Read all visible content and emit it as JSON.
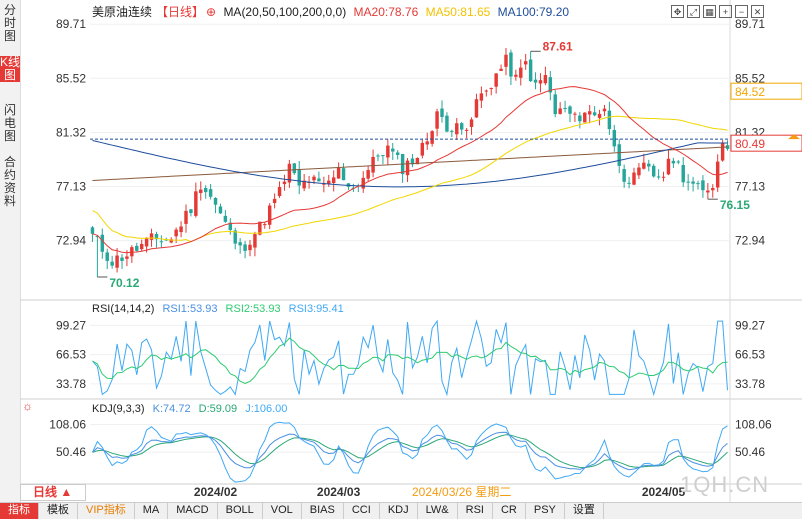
{
  "side_tabs": [
    {
      "label": "分时图",
      "active": false
    },
    {
      "label": "K线图",
      "active": true
    },
    {
      "label": "闪电图",
      "active": false
    },
    {
      "label": "合约资料",
      "active": false
    }
  ],
  "legend": {
    "instrument": "美原油连续",
    "period": "【日线】",
    "ma_params": "MA(20,50,100,200,0,0)",
    "ma20": "MA20:78.76",
    "ma50": "MA50:81.65",
    "ma100": "MA100:79.20"
  },
  "rsi_legend": {
    "name": "RSI(14,14,2)",
    "rsi1": "RSI1:53.93",
    "rsi2": "RSI2:53.93",
    "rsi3": "RSI3:95.41"
  },
  "kdj_legend": {
    "name": "KDJ(9,3,3)",
    "k": "K:74.72",
    "d": "D:59.09",
    "j": "J:106.00"
  },
  "colors": {
    "up": "#e53935",
    "down": "#26a69a",
    "ma20": "#e53935",
    "ma50": "#f2d600",
    "ma100": "#1f4e9c",
    "ma200": "#8b5a3c",
    "rsi1": "#4a90e2",
    "rsi2": "#2ecc71",
    "rsi3": "#3fa9f5",
    "kdj_k": "#4a90e2",
    "kdj_d": "#2aa876",
    "kdj_j": "#3fa9f5"
  },
  "period_button": "日线",
  "bottom_tabs": [
    "指标",
    "模板",
    "VIP指标",
    "MA",
    "MACD",
    "BOLL",
    "VOL",
    "BIAS",
    "CCI",
    "KDJ",
    "LW&",
    "RSI",
    "CR",
    "PSY",
    "设置"
  ],
  "watermark": "1QH.CN",
  "chart_data": {
    "type": "candlestick",
    "main": {
      "y_ticks": [
        "89.71",
        "85.52",
        "81.32",
        "77.13",
        "72.94"
      ],
      "ylim": [
        69.5,
        90.5
      ],
      "price_labels": [
        {
          "value": 84.52,
          "text": "84.52",
          "color": "#f2a600"
        },
        {
          "value": 80.49,
          "text": "80.49",
          "color": "#e53935"
        }
      ],
      "last_price_line": 80.8,
      "annotations": [
        {
          "text": "87.61",
          "value": 87.61,
          "index": 89,
          "color": "#e53935"
        },
        {
          "text": "70.12",
          "value": 70.12,
          "index": 1,
          "color": "#2aa876"
        },
        {
          "text": "76.15",
          "value": 76.15,
          "index": 125,
          "color": "#2aa876"
        }
      ],
      "anchors": [
        [
          0,
          73.3
        ],
        [
          4,
          71.3
        ],
        [
          8,
          72.1
        ],
        [
          12,
          73.0
        ],
        [
          16,
          73.1
        ],
        [
          20,
          75.5
        ],
        [
          22,
          77.4
        ],
        [
          24,
          76.4
        ],
        [
          28,
          73.5
        ],
        [
          30,
          72.2
        ],
        [
          34,
          74.0
        ],
        [
          38,
          76.7
        ],
        [
          40,
          78.6
        ],
        [
          42,
          77.1
        ],
        [
          44,
          77.7
        ],
        [
          47,
          77.0
        ],
        [
          50,
          78.3
        ],
        [
          53,
          77.0
        ],
        [
          56,
          78.4
        ],
        [
          58,
          79.6
        ],
        [
          60,
          80.1
        ],
        [
          63,
          78.6
        ],
        [
          66,
          79.5
        ],
        [
          68,
          80.8
        ],
        [
          70,
          83.0
        ],
        [
          72,
          81.3
        ],
        [
          74,
          82.5
        ],
        [
          76,
          81.0
        ],
        [
          78,
          83.7
        ],
        [
          80,
          84.6
        ],
        [
          82,
          85.8
        ],
        [
          84,
          86.8
        ],
        [
          86,
          85.4
        ],
        [
          88,
          86.7
        ],
        [
          90,
          84.8
        ],
        [
          92,
          85.7
        ],
        [
          94,
          82.8
        ],
        [
          96,
          83.1
        ],
        [
          98,
          82.3
        ],
        [
          100,
          83.0
        ],
        [
          102,
          82.6
        ],
        [
          104,
          83.4
        ],
        [
          106,
          80.0
        ],
        [
          108,
          78.0
        ],
        [
          110,
          77.7
        ],
        [
          112,
          78.6
        ],
        [
          114,
          78.0
        ],
        [
          116,
          78.1
        ],
        [
          118,
          79.4
        ],
        [
          120,
          78.0
        ],
        [
          122,
          77.2
        ],
        [
          124,
          76.6
        ],
        [
          126,
          77.4
        ],
        [
          128,
          80.7
        ],
        [
          129,
          80.5
        ]
      ],
      "count": 130
    },
    "rsi": {
      "y_ticks": [
        "99.27",
        "66.53",
        "33.78"
      ],
      "ylim": [
        18,
        112
      ]
    },
    "kdj": {
      "y_ticks": [
        "108.06",
        "50.46"
      ],
      "ylim": [
        -12,
        130
      ]
    },
    "x_labels": [
      {
        "text": "2024/02",
        "index": 25
      },
      {
        "text": "2024/03",
        "index": 50
      },
      {
        "text": "2024/03/26 星期二",
        "index": 75,
        "highlight": true
      },
      {
        "text": "2024/05",
        "index": 116
      }
    ]
  }
}
